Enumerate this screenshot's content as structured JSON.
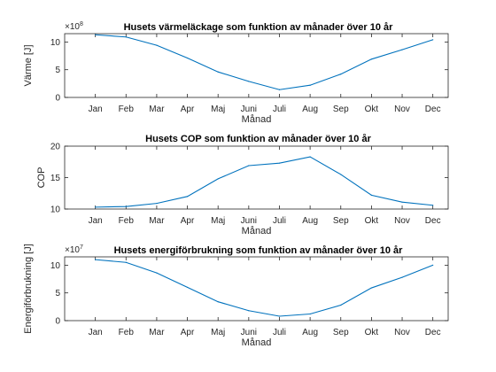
{
  "chart_data": [
    {
      "type": "line",
      "title": "Husets värmeläckage som funktion av månader över 10 år",
      "xlabel": "Månad",
      "ylabel": "Värme [J]",
      "categories": [
        "Jan",
        "Feb",
        "Mar",
        "Apr",
        "Maj",
        "Juni",
        "Juli",
        "Aug",
        "Sep",
        "Okt",
        "Nov",
        "Dec"
      ],
      "exponent": "8",
      "exponent_base": "×10",
      "ylim": [
        0,
        11.5
      ],
      "yticks": [
        "0",
        "5",
        "10"
      ],
      "series": [
        {
          "values": [
            11.3,
            10.9,
            9.4,
            7.1,
            4.6,
            2.9,
            1.4,
            2.2,
            4.2,
            6.9,
            8.6,
            10.4
          ],
          "color": "#0072BD"
        }
      ],
      "grid": false
    },
    {
      "type": "line",
      "title": "Husets COP som funktion av månader över 10 år",
      "xlabel": "Månad",
      "ylabel": "COP",
      "categories": [
        "Jan",
        "Feb",
        "Mar",
        "Apr",
        "Maj",
        "Juni",
        "Juli",
        "Aug",
        "Sep",
        "Okt",
        "Nov",
        "Dec"
      ],
      "ylim": [
        10,
        20
      ],
      "yticks": [
        "10",
        "15",
        "20"
      ],
      "series": [
        {
          "values": [
            10.3,
            10.4,
            10.9,
            12.0,
            14.8,
            16.9,
            17.3,
            18.3,
            15.5,
            12.2,
            11.1,
            10.6
          ],
          "color": "#0072BD"
        }
      ],
      "grid": false
    },
    {
      "type": "line",
      "title": "Husets energiförbrukning som funktion av månader över 10 år",
      "xlabel": "Månad",
      "ylabel": "Energiförbrukning [J]",
      "categories": [
        "Jan",
        "Feb",
        "Mar",
        "Apr",
        "Maj",
        "Juni",
        "Juli",
        "Aug",
        "Sep",
        "Okt",
        "Nov",
        "Dec"
      ],
      "exponent": "7",
      "exponent_base": "×10",
      "ylim": [
        0,
        11.5
      ],
      "yticks": [
        "0",
        "5",
        "10"
      ],
      "series": [
        {
          "values": [
            11.0,
            10.5,
            8.6,
            6.0,
            3.4,
            1.8,
            0.8,
            1.2,
            2.8,
            5.9,
            7.8,
            10.0
          ],
          "color": "#0072BD"
        }
      ],
      "grid": false
    }
  ]
}
